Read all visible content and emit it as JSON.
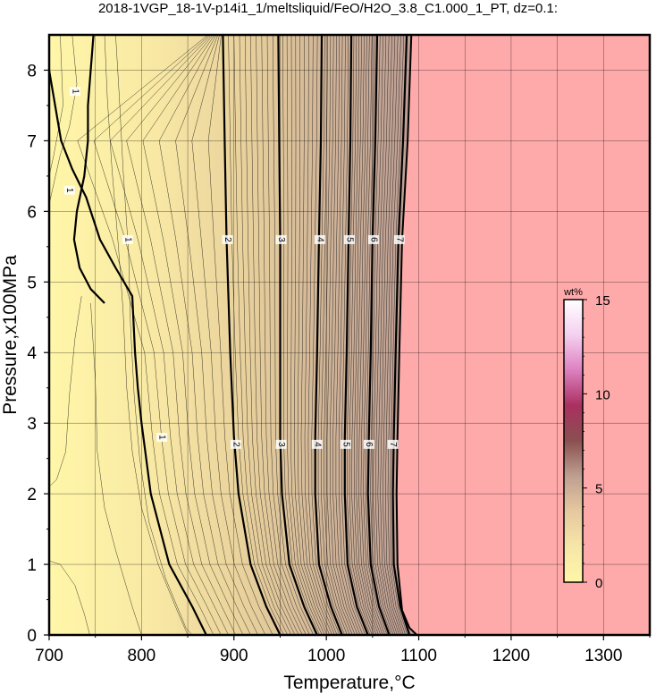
{
  "chart_data": {
    "type": "heatmap",
    "title": "2018-1VGP_18-1V-p14i1_1/meltsliquid/FeO/H2O_3.8_C1.000_1_PT, dz=0.1:",
    "xlabel": "Temperature,°C",
    "ylabel": "Pressure,x100MPa",
    "xlim": [
      700,
      1350
    ],
    "ylim": [
      0,
      8.5
    ],
    "xticks": [
      700,
      800,
      900,
      1000,
      1100,
      1200,
      1300
    ],
    "yticks": [
      0,
      1,
      2,
      3,
      4,
      5,
      6,
      7,
      8
    ],
    "grid": true,
    "colorbar": {
      "unit": "wt%",
      "range": [
        0,
        15
      ],
      "ticks": [
        0,
        5,
        10,
        15
      ],
      "colors": [
        "#fff6a8",
        "#f6e6a8",
        "#e6c8a0",
        "#bf9f90",
        "#8a5050",
        "#aa3060",
        "#dd80c0",
        "#f4d0f0",
        "#ffffff"
      ]
    },
    "no_data_color": "#ffaaaa",
    "liquid_region_color": "#fff0a0",
    "contour_interval": 0.1,
    "major_contours": [
      {
        "level": 1,
        "label": "1",
        "points": [
          [
            700,
            8.0
          ],
          [
            713,
            7.0
          ],
          [
            725,
            6.6
          ],
          [
            740,
            6.2
          ],
          [
            755,
            5.6
          ],
          [
            772,
            5.2
          ],
          [
            790,
            4.8
          ],
          [
            793,
            4.0
          ],
          [
            796,
            3.5
          ],
          [
            800,
            3.0
          ],
          [
            810,
            2.0
          ],
          [
            830,
            1.0
          ],
          [
            855,
            0.4
          ],
          [
            870,
            0.0
          ]
        ]
      },
      {
        "level": 1,
        "label": "1",
        "points": [
          [
            748,
            8.5
          ],
          [
            745,
            8.0
          ],
          [
            742,
            7.5
          ],
          [
            742,
            7.0
          ],
          [
            738,
            6.5
          ],
          [
            730,
            6.0
          ],
          [
            727,
            5.6
          ],
          [
            733,
            5.2
          ],
          [
            745,
            4.9
          ],
          [
            760,
            4.7
          ]
        ]
      },
      {
        "level": 2,
        "label": "2",
        "points": [
          [
            888,
            8.5
          ],
          [
            890,
            7.0
          ],
          [
            892,
            5.6
          ],
          [
            896,
            4.0
          ],
          [
            900,
            2.8
          ],
          [
            905,
            2.0
          ],
          [
            918,
            1.0
          ],
          [
            935,
            0.4
          ],
          [
            950,
            0.0
          ]
        ]
      },
      {
        "level": 3,
        "label": "3",
        "points": [
          [
            948,
            8.5
          ],
          [
            949,
            7.0
          ],
          [
            950,
            5.6
          ],
          [
            950,
            4.0
          ],
          [
            950,
            2.8
          ],
          [
            952,
            2.0
          ],
          [
            960,
            1.0
          ],
          [
            976,
            0.4
          ],
          [
            990,
            0.0
          ]
        ]
      },
      {
        "level": 4,
        "label": "4",
        "points": [
          [
            995,
            8.5
          ],
          [
            994,
            7.0
          ],
          [
            992,
            5.6
          ],
          [
            990,
            4.0
          ],
          [
            988,
            2.8
          ],
          [
            988,
            2.0
          ],
          [
            992,
            1.0
          ],
          [
            1005,
            0.4
          ],
          [
            1017,
            0.0
          ]
        ]
      },
      {
        "level": 5,
        "label": "5",
        "points": [
          [
            1027,
            8.5
          ],
          [
            1026,
            7.0
          ],
          [
            1024,
            5.6
          ],
          [
            1022,
            4.0
          ],
          [
            1020,
            2.8
          ],
          [
            1020,
            2.0
          ],
          [
            1023,
            1.0
          ],
          [
            1033,
            0.4
          ],
          [
            1045,
            0.0
          ]
        ]
      },
      {
        "level": 6,
        "label": "6",
        "points": [
          [
            1055,
            8.5
          ],
          [
            1053,
            7.0
          ],
          [
            1050,
            5.6
          ],
          [
            1048,
            4.0
          ],
          [
            1046,
            2.8
          ],
          [
            1045,
            2.0
          ],
          [
            1048,
            1.0
          ],
          [
            1057,
            0.4
          ],
          [
            1068,
            0.0
          ]
        ]
      },
      {
        "level": 7,
        "label": "7",
        "points": [
          [
            1087,
            8.5
          ],
          [
            1083,
            7.0
          ],
          [
            1078,
            5.6
          ],
          [
            1075,
            4.0
          ],
          [
            1073,
            2.8
          ],
          [
            1072,
            2.0
          ],
          [
            1073,
            1.0
          ],
          [
            1080,
            0.4
          ],
          [
            1090,
            0.0
          ]
        ]
      }
    ],
    "label_positions": [
      {
        "text": "1",
        "x": 822,
        "y": 2.8
      },
      {
        "text": "1",
        "x": 785,
        "y": 5.6
      },
      {
        "text": "1",
        "x": 722,
        "y": 6.3
      },
      {
        "text": "1",
        "x": 728,
        "y": 7.7
      },
      {
        "text": "2",
        "x": 902,
        "y": 2.7
      },
      {
        "text": "2",
        "x": 893,
        "y": 5.6
      },
      {
        "text": "3",
        "x": 951,
        "y": 2.7
      },
      {
        "text": "3",
        "x": 951,
        "y": 5.6
      },
      {
        "text": "4",
        "x": 990,
        "y": 2.7
      },
      {
        "text": "4",
        "x": 993,
        "y": 5.6
      },
      {
        "text": "5",
        "x": 1021,
        "y": 2.7
      },
      {
        "text": "5",
        "x": 1025,
        "y": 5.6
      },
      {
        "text": "6",
        "x": 1046,
        "y": 2.7
      },
      {
        "text": "6",
        "x": 1051,
        "y": 5.6
      },
      {
        "text": "7",
        "x": 1072,
        "y": 2.7
      },
      {
        "text": "7",
        "x": 1079,
        "y": 5.6
      }
    ]
  }
}
